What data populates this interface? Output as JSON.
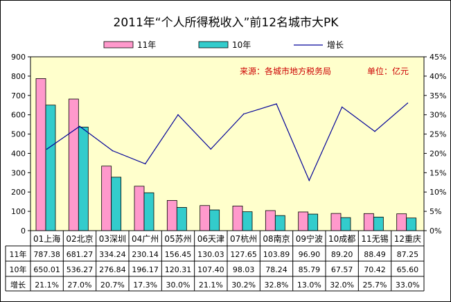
{
  "chart_data": {
    "type": "bar",
    "title": "2011年“个人所得税收入”前12名城市大PK",
    "source_note": "来源：各城市地方税务局",
    "unit_note": "单位：亿元",
    "categories": [
      "01上海",
      "02北京",
      "03深圳",
      "04广州",
      "05苏州",
      "06天津",
      "07杭州",
      "08南京",
      "09宁波",
      "10成都",
      "11无锡",
      "12重庆"
    ],
    "series": [
      {
        "name": "11年",
        "color": "#ff99cc",
        "values": [
          787.38,
          681.27,
          334.24,
          230.14,
          156.45,
          130.03,
          127.65,
          103.89,
          96.9,
          89.2,
          88.49,
          87.25
        ]
      },
      {
        "name": "10年",
        "color": "#33cccc",
        "values": [
          650.01,
          536.27,
          276.84,
          196.17,
          120.31,
          107.4,
          98.03,
          78.24,
          85.79,
          67.57,
          70.42,
          65.6
        ]
      }
    ],
    "line_series": {
      "name": "增长",
      "color": "#000099",
      "axis": "right",
      "values": [
        21.1,
        27.0,
        20.7,
        17.3,
        30.0,
        21.1,
        30.2,
        32.8,
        13.0,
        32.0,
        25.7,
        33.0
      ]
    },
    "table_rows": [
      {
        "label": "11年",
        "cells": [
          "787.38",
          "681.27",
          "334.24",
          "230.14",
          "156.45",
          "130.03",
          "127.65",
          "103.89",
          "96.90",
          "89.20",
          "88.49",
          "87.25"
        ]
      },
      {
        "label": "10年",
        "cells": [
          "650.01",
          "536.27",
          "276.84",
          "196.17",
          "120.31",
          "107.40",
          "98.03",
          "78.24",
          "85.79",
          "67.57",
          "70.42",
          "65.60"
        ]
      },
      {
        "label": "增长",
        "cells": [
          "21.1%",
          "27.0%",
          "20.7%",
          "17.3%",
          "30.0%",
          "21.1%",
          "30.2%",
          "32.8%",
          "13.0%",
          "32.0%",
          "25.7%",
          "33.0%"
        ]
      }
    ],
    "ylim": [
      0,
      900
    ],
    "y_ticks": [
      "0",
      "100",
      "200",
      "300",
      "400",
      "500",
      "600",
      "700",
      "800",
      "900"
    ],
    "y2lim": [
      0,
      45
    ],
    "y2_ticks": [
      "0%",
      "5%",
      "10%",
      "15%",
      "20%",
      "25%",
      "30%",
      "35%",
      "40%",
      "45%"
    ],
    "legend_position": "top",
    "grid": false,
    "plot_background": "#ffffcc",
    "note_color": "#cc0000"
  }
}
